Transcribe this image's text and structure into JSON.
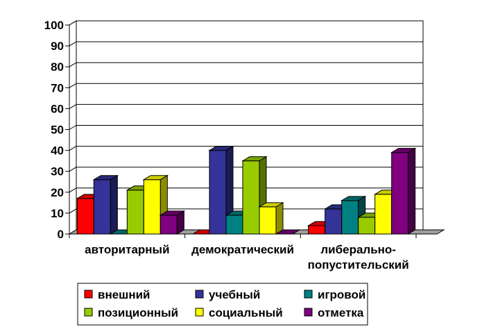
{
  "chart_data": {
    "type": "bar",
    "style": "3d-clustered-column",
    "categories": [
      [
        "авторитарный"
      ],
      [
        "демократический"
      ],
      [
        "либерально-",
        "попустительский"
      ]
    ],
    "series": [
      {
        "name": "внешний",
        "color": "#FF0000",
        "values": [
          17,
          0,
          4
        ]
      },
      {
        "name": "учебный",
        "color": "#333399",
        "values": [
          26,
          40,
          12
        ]
      },
      {
        "name": "игровой",
        "color": "#008080",
        "values": [
          0,
          9,
          16
        ]
      },
      {
        "name": "позиционный",
        "color": "#99CC00",
        "values": [
          21,
          35,
          8
        ]
      },
      {
        "name": "социальный",
        "color": "#FFFF00",
        "values": [
          26,
          13,
          19
        ]
      },
      {
        "name": "отметка",
        "color": "#800080",
        "values": [
          9,
          0,
          39
        ]
      }
    ],
    "ylim": [
      0,
      100
    ],
    "yticks": [
      "0",
      "10",
      "20",
      "30",
      "40",
      "50",
      "60",
      "70",
      "80",
      "90",
      "100"
    ],
    "grid": true,
    "legend": "bottom",
    "title": "",
    "xlabel": "",
    "ylabel": ""
  }
}
